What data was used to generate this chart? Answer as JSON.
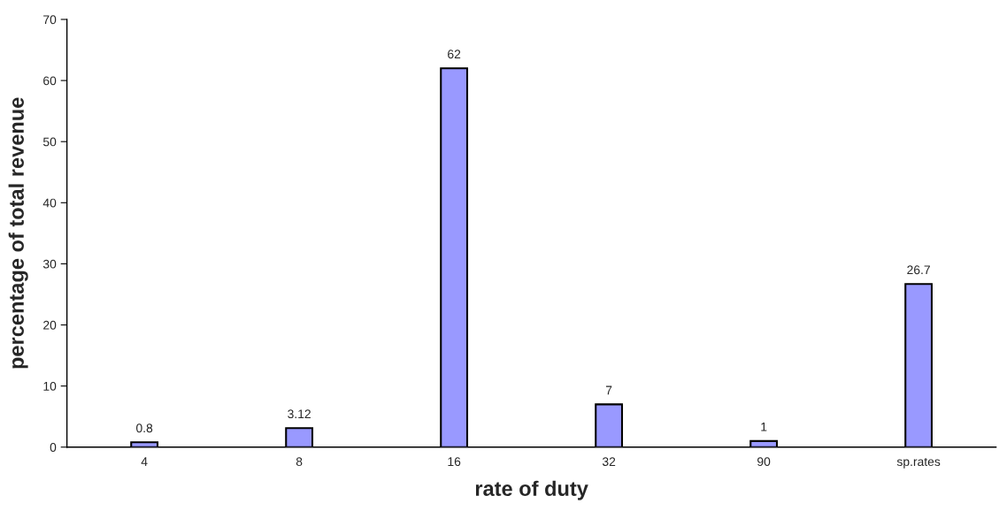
{
  "chart_data": {
    "type": "bar",
    "xlabel": "rate of duty",
    "ylabel": "percentage of total revenue",
    "categories": [
      "4",
      "8",
      "16",
      "32",
      "90",
      "sp.rates"
    ],
    "values": [
      0.8,
      3.12,
      62,
      7,
      1,
      26.7
    ],
    "color": "#9999ff",
    "ylim": [
      0,
      70
    ],
    "yticks": [
      0,
      10,
      20,
      30,
      40,
      50,
      60,
      70
    ],
    "data_labels": true,
    "grid": false,
    "legend": false
  }
}
